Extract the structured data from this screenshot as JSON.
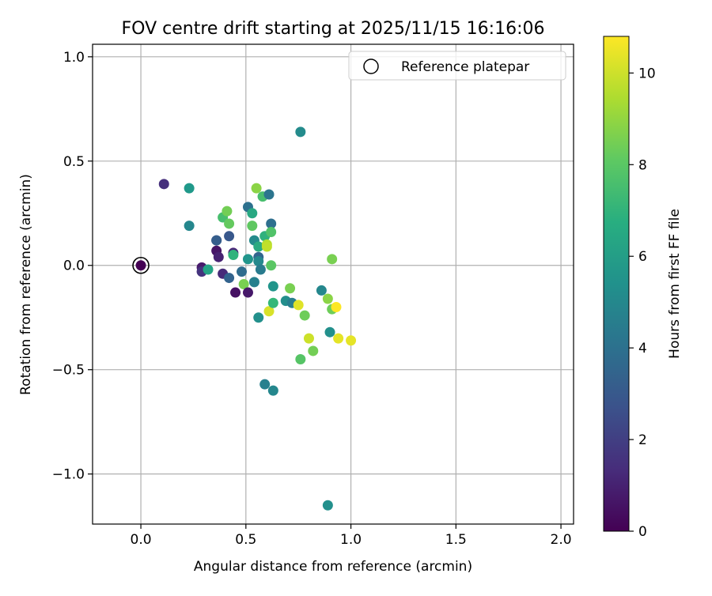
{
  "chart_data": {
    "type": "scatter",
    "title": "FOV centre drift starting at 2025/11/15 16:16:06",
    "xlabel": "Angular distance from reference (arcmin)",
    "ylabel": "Rotation from reference (arcmin)",
    "xlim": [
      -0.23,
      2.06
    ],
    "ylim": [
      -1.24,
      1.06
    ],
    "xticks": [
      0.0,
      0.5,
      1.0,
      1.5,
      2.0
    ],
    "xtick_labels": [
      "0.0",
      "0.5",
      "1.0",
      "1.5",
      "2.0"
    ],
    "yticks": [
      -1.0,
      -0.5,
      0.0,
      0.5,
      1.0
    ],
    "ytick_labels": [
      "−1.0",
      "−0.5",
      "0.0",
      "0.5",
      "1.0"
    ],
    "grid": true,
    "legend": {
      "placement": "top-right",
      "entries": [
        "Reference platepar"
      ]
    },
    "reference_point": {
      "x": 0.0,
      "y": 0.0
    },
    "colorbar": {
      "label": "Hours from first FF file",
      "colormap": "viridis",
      "range": [
        0,
        10.8
      ],
      "ticks": [
        0,
        2,
        4,
        6,
        8,
        10
      ],
      "tick_labels": [
        "0",
        "2",
        "4",
        "6",
        "8",
        "10"
      ]
    },
    "points": [
      {
        "x": 0.0,
        "y": 0.0,
        "c": 0.0
      },
      {
        "x": 0.11,
        "y": 0.39,
        "c": 1.5
      },
      {
        "x": 0.23,
        "y": 0.37,
        "c": 5.8
      },
      {
        "x": 0.23,
        "y": 0.19,
        "c": 5.0
      },
      {
        "x": 0.29,
        "y": -0.01,
        "c": 0.8
      },
      {
        "x": 0.29,
        "y": -0.03,
        "c": 1.6
      },
      {
        "x": 0.32,
        "y": -0.02,
        "c": 6.3
      },
      {
        "x": 0.36,
        "y": 0.12,
        "c": 2.6
      },
      {
        "x": 0.36,
        "y": 0.12,
        "c": 3.2
      },
      {
        "x": 0.36,
        "y": 0.07,
        "c": 0.6
      },
      {
        "x": 0.37,
        "y": 0.04,
        "c": 1.0
      },
      {
        "x": 0.39,
        "y": 0.23,
        "c": 7.6
      },
      {
        "x": 0.39,
        "y": -0.04,
        "c": 1.3
      },
      {
        "x": 0.41,
        "y": 0.26,
        "c": 8.5
      },
      {
        "x": 0.42,
        "y": 0.2,
        "c": 8.2
      },
      {
        "x": 0.42,
        "y": 0.14,
        "c": 3.0
      },
      {
        "x": 0.42,
        "y": -0.06,
        "c": 3.4
      },
      {
        "x": 0.44,
        "y": 0.06,
        "c": 1.2
      },
      {
        "x": 0.44,
        "y": 0.05,
        "c": 7.0
      },
      {
        "x": 0.45,
        "y": -0.13,
        "c": 0.5
      },
      {
        "x": 0.48,
        "y": -0.03,
        "c": 3.8
      },
      {
        "x": 0.49,
        "y": -0.09,
        "c": 8.6
      },
      {
        "x": 0.51,
        "y": -0.13,
        "c": 0.7
      },
      {
        "x": 0.51,
        "y": 0.28,
        "c": 4.0
      },
      {
        "x": 0.51,
        "y": 0.03,
        "c": 5.6
      },
      {
        "x": 0.53,
        "y": 0.25,
        "c": 6.5
      },
      {
        "x": 0.53,
        "y": 0.19,
        "c": 8.1
      },
      {
        "x": 0.54,
        "y": 0.12,
        "c": 5.2
      },
      {
        "x": 0.54,
        "y": -0.08,
        "c": 4.7
      },
      {
        "x": 0.55,
        "y": 0.37,
        "c": 8.9
      },
      {
        "x": 0.56,
        "y": 0.09,
        "c": 6.6
      },
      {
        "x": 0.56,
        "y": 0.04,
        "c": 3.5
      },
      {
        "x": 0.56,
        "y": 0.02,
        "c": 5.1
      },
      {
        "x": 0.56,
        "y": -0.25,
        "c": 5.4
      },
      {
        "x": 0.57,
        "y": -0.02,
        "c": 4.5
      },
      {
        "x": 0.58,
        "y": 0.33,
        "c": 7.6
      },
      {
        "x": 0.59,
        "y": 0.14,
        "c": 6.9
      },
      {
        "x": 0.59,
        "y": -0.57,
        "c": 4.7
      },
      {
        "x": 0.6,
        "y": 0.1,
        "c": 9.6
      },
      {
        "x": 0.6,
        "y": 0.09,
        "c": 9.8
      },
      {
        "x": 0.61,
        "y": 0.34,
        "c": 4.2
      },
      {
        "x": 0.61,
        "y": -0.22,
        "c": 10.2
      },
      {
        "x": 0.62,
        "y": 0.2,
        "c": 3.9
      },
      {
        "x": 0.62,
        "y": 0.16,
        "c": 7.8
      },
      {
        "x": 0.62,
        "y": 0.0,
        "c": 8.0
      },
      {
        "x": 0.63,
        "y": -0.1,
        "c": 5.6
      },
      {
        "x": 0.63,
        "y": -0.18,
        "c": 7.2
      },
      {
        "x": 0.63,
        "y": -0.6,
        "c": 5.0
      },
      {
        "x": 0.69,
        "y": -0.17,
        "c": 5.3
      },
      {
        "x": 0.71,
        "y": -0.11,
        "c": 8.6
      },
      {
        "x": 0.72,
        "y": -0.18,
        "c": 4.6
      },
      {
        "x": 0.75,
        "y": -0.19,
        "c": 10.3
      },
      {
        "x": 0.76,
        "y": 0.64,
        "c": 5.2
      },
      {
        "x": 0.76,
        "y": -0.45,
        "c": 7.9
      },
      {
        "x": 0.78,
        "y": -0.24,
        "c": 8.4
      },
      {
        "x": 0.8,
        "y": -0.35,
        "c": 10.0
      },
      {
        "x": 0.82,
        "y": -0.41,
        "c": 8.5
      },
      {
        "x": 0.86,
        "y": -0.12,
        "c": 5.0
      },
      {
        "x": 0.89,
        "y": -0.16,
        "c": 8.9
      },
      {
        "x": 0.9,
        "y": -0.32,
        "c": 5.4
      },
      {
        "x": 0.91,
        "y": -0.21,
        "c": 8.4
      },
      {
        "x": 0.91,
        "y": 0.03,
        "c": 8.6
      },
      {
        "x": 0.93,
        "y": -0.2,
        "c": 10.8
      },
      {
        "x": 0.94,
        "y": -0.35,
        "c": 10.4
      },
      {
        "x": 1.0,
        "y": -0.36,
        "c": 10.4
      },
      {
        "x": 0.89,
        "y": -1.15,
        "c": 5.4
      }
    ]
  }
}
